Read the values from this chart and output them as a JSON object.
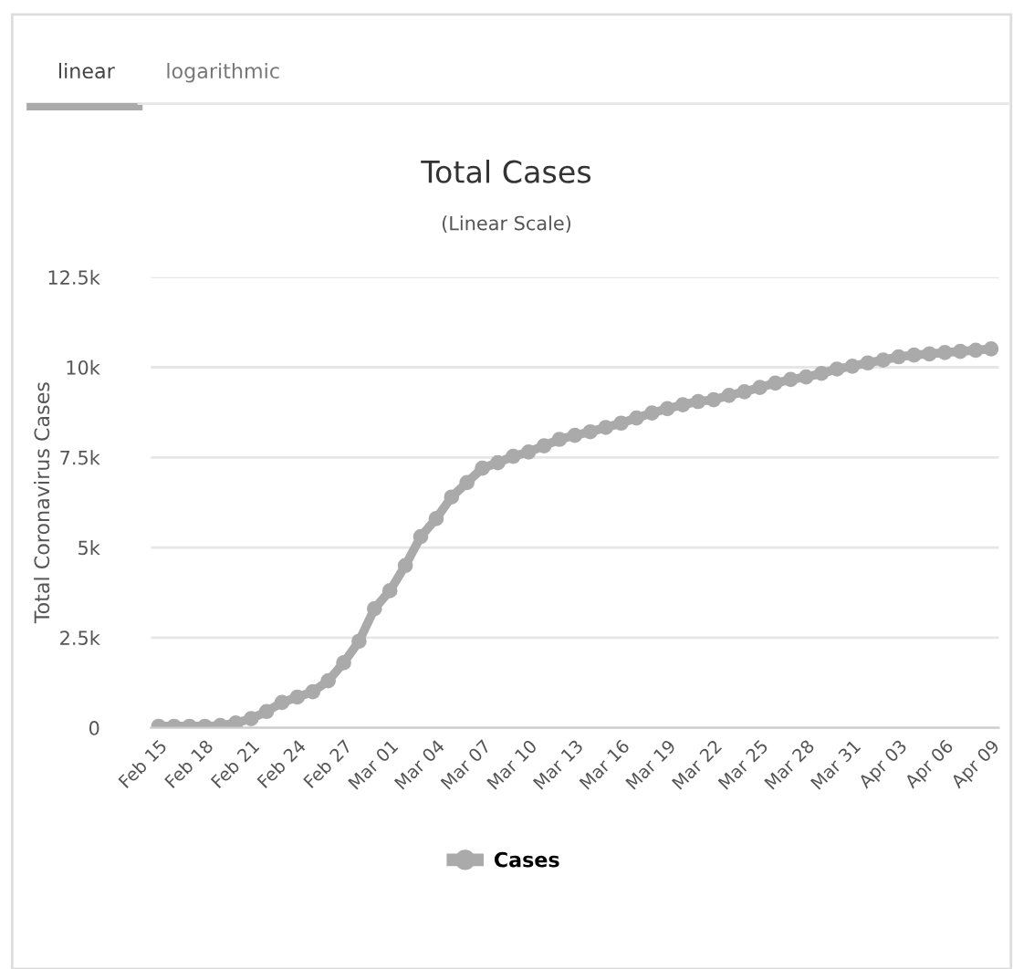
{
  "chart_data": {
    "type": "line",
    "title": "Total Cases",
    "subtitle": "(Linear Scale)",
    "ylabel": "Total Coronavirus Cases",
    "annotations": [
      "linear",
      "logarithmic"
    ],
    "categories": [
      "Feb 15",
      null,
      null,
      "Feb 18",
      null,
      null,
      "Feb 21",
      null,
      null,
      "Feb 24",
      null,
      null,
      "Feb 27",
      null,
      null,
      "Mar 01",
      null,
      null,
      "Mar 04",
      null,
      null,
      "Mar 07",
      null,
      null,
      "Mar 10",
      null,
      null,
      "Mar 13",
      null,
      null,
      "Mar 16",
      null,
      null,
      "Mar 19",
      null,
      null,
      "Mar 22",
      null,
      null,
      "Mar 25",
      null,
      null,
      "Mar 28",
      null,
      null,
      "Mar 31",
      null,
      null,
      "Apr 03",
      null,
      null,
      "Apr 06",
      null,
      null,
      "Apr 09"
    ],
    "series": [
      {
        "name": "Cases",
        "color": "#aaaaaa",
        "values": [
          40,
          40,
          40,
          40,
          60,
          130,
          250,
          450,
          700,
          850,
          1000,
          1300,
          1800,
          2400,
          3300,
          3800,
          4500,
          5300,
          5800,
          6400,
          6800,
          7200,
          7350,
          7530,
          7650,
          7820,
          8000,
          8110,
          8210,
          8330,
          8450,
          8590,
          8730,
          8850,
          8960,
          9050,
          9100,
          9220,
          9320,
          9440,
          9560,
          9660,
          9730,
          9830,
          9950,
          10030,
          10120,
          10200,
          10290,
          10340,
          10370,
          10410,
          10440,
          10470,
          10510
        ]
      }
    ],
    "ylim": [
      0,
      12500
    ],
    "yticks": [
      0,
      {
        "value": 2500,
        "label": "2.5k"
      },
      {
        "value": 5000,
        "label": "5k"
      },
      {
        "value": 7500,
        "label": "7.5k"
      },
      {
        "value": 10000,
        "label": "10k"
      },
      {
        "value": 12500,
        "label": "12.5k"
      }
    ],
    "grid": "y",
    "legend": "bottom",
    "marker": "circle",
    "line_style": "solid"
  }
}
